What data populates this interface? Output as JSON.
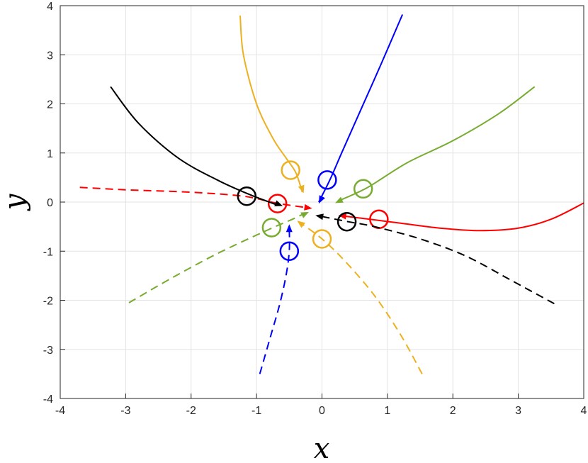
{
  "chart_data": {
    "type": "line",
    "title": "",
    "xlabel": "x",
    "ylabel": "y",
    "xlim": [
      -4,
      4
    ],
    "ylim": [
      -4,
      4
    ],
    "x_ticks": [
      -4,
      -3,
      -2,
      -1,
      0,
      1,
      2,
      3,
      4
    ],
    "y_ticks": [
      -4,
      -3,
      -2,
      -1,
      0,
      1,
      2,
      3,
      4
    ],
    "grid": true,
    "legend": "none",
    "series": [
      {
        "color": "#0000ff",
        "style": "solid",
        "points": [
          [
            1.23,
            3.82
          ],
          [
            0.9,
            2.8
          ],
          [
            0.55,
            1.75
          ],
          [
            0.3,
            1.0
          ],
          [
            0.12,
            0.45
          ],
          [
            -0.05,
            0.0
          ]
        ],
        "arrow_end": [
          -0.05,
          -0.03
        ],
        "marker": [
          0.08,
          0.45
        ]
      },
      {
        "color": "#0000ff",
        "style": "dashed",
        "points": [
          [
            -0.95,
            -3.5
          ],
          [
            -0.8,
            -2.8
          ],
          [
            -0.65,
            -2.1
          ],
          [
            -0.55,
            -1.5
          ],
          [
            -0.5,
            -1.0
          ],
          [
            -0.5,
            -0.5
          ]
        ],
        "arrow_end": [
          -0.5,
          -0.45
        ],
        "marker": [
          -0.5,
          -1.0
        ]
      },
      {
        "color": "#edb120",
        "style": "solid",
        "points": [
          [
            -1.25,
            3.8
          ],
          [
            -1.2,
            3.0
          ],
          [
            -1.0,
            2.0
          ],
          [
            -0.75,
            1.3
          ],
          [
            -0.55,
            0.9
          ],
          [
            -0.4,
            0.6
          ],
          [
            -0.3,
            0.2
          ]
        ],
        "arrow_end": [
          -0.28,
          0.18
        ],
        "marker": [
          -0.48,
          0.65
        ]
      },
      {
        "color": "#edb120",
        "style": "dashed",
        "points": [
          [
            1.53,
            -3.5
          ],
          [
            1.2,
            -2.7
          ],
          [
            0.8,
            -1.9
          ],
          [
            0.35,
            -1.2
          ],
          [
            0.0,
            -0.75
          ],
          [
            -0.3,
            -0.45
          ]
        ],
        "arrow_end": [
          -0.38,
          -0.38
        ],
        "marker": [
          0.0,
          -0.75
        ]
      },
      {
        "color": "#77ac30",
        "style": "solid",
        "points": [
          [
            3.25,
            2.35
          ],
          [
            2.7,
            1.8
          ],
          [
            2.0,
            1.25
          ],
          [
            1.3,
            0.8
          ],
          [
            0.7,
            0.3
          ],
          [
            0.3,
            0.05
          ]
        ],
        "arrow_end": [
          0.2,
          -0.02
        ],
        "marker": [
          0.63,
          0.27
        ]
      },
      {
        "color": "#77ac30",
        "style": "dashed",
        "points": [
          [
            -2.95,
            -2.05
          ],
          [
            -2.3,
            -1.55
          ],
          [
            -1.6,
            -1.05
          ],
          [
            -0.8,
            -0.55
          ],
          [
            -0.45,
            -0.35
          ],
          [
            -0.25,
            -0.22
          ]
        ],
        "arrow_end": [
          -0.2,
          -0.2
        ],
        "marker": [
          -0.77,
          -0.52
        ]
      },
      {
        "color": "#ff0000",
        "style": "solid",
        "points": [
          [
            4.0,
            -0.02
          ],
          [
            3.5,
            -0.35
          ],
          [
            3.0,
            -0.53
          ],
          [
            2.4,
            -0.58
          ],
          [
            1.8,
            -0.53
          ],
          [
            1.2,
            -0.43
          ],
          [
            0.85,
            -0.37
          ],
          [
            0.3,
            -0.28
          ]
        ],
        "arrow_end": [
          0.25,
          -0.27
        ],
        "marker": [
          0.87,
          -0.35
        ]
      },
      {
        "color": "#ff0000",
        "style": "dashed",
        "points": [
          [
            -3.7,
            0.3
          ],
          [
            -3.0,
            0.25
          ],
          [
            -2.0,
            0.2
          ],
          [
            -1.2,
            0.12
          ],
          [
            -0.7,
            -0.02
          ],
          [
            -0.2,
            -0.12
          ]
        ],
        "arrow_end": [
          -0.15,
          -0.13
        ],
        "marker": [
          -0.68,
          -0.03
        ]
      },
      {
        "color": "#000000",
        "style": "solid",
        "points": [
          [
            -3.23,
            2.35
          ],
          [
            -2.8,
            1.6
          ],
          [
            -2.2,
            0.9
          ],
          [
            -1.6,
            0.45
          ],
          [
            -1.1,
            0.15
          ],
          [
            -0.7,
            -0.05
          ]
        ],
        "arrow_end": [
          -0.6,
          -0.08
        ],
        "marker": [
          -1.15,
          0.12
        ]
      },
      {
        "color": "#000000",
        "style": "dashed",
        "points": [
          [
            3.55,
            -2.07
          ],
          [
            2.9,
            -1.6
          ],
          [
            2.2,
            -1.1
          ],
          [
            1.5,
            -0.75
          ],
          [
            0.8,
            -0.5
          ],
          [
            0.4,
            -0.4
          ],
          [
            -0.05,
            -0.28
          ]
        ],
        "arrow_end": [
          -0.1,
          -0.27
        ],
        "marker": [
          0.38,
          -0.4
        ]
      }
    ]
  }
}
